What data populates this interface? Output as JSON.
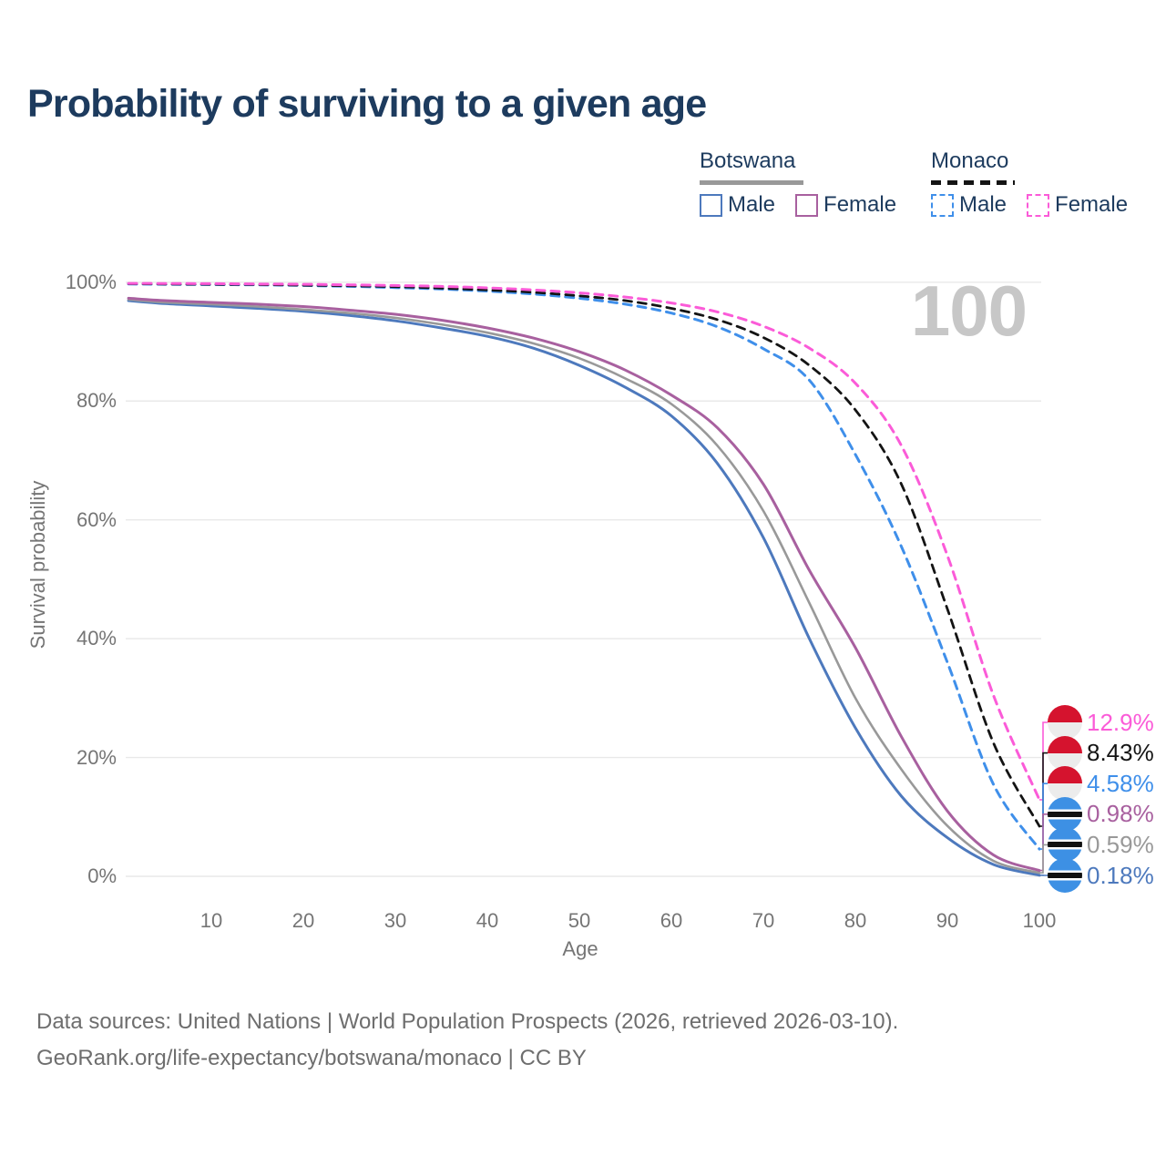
{
  "title": "Probability of surviving to a given age",
  "watermark": "100",
  "legend": {
    "groups": [
      {
        "label": "Botswana",
        "line_style": "solid",
        "underline_color": "#999999",
        "items": [
          {
            "label": "Male",
            "color": "#4d79bd",
            "style": "solid"
          },
          {
            "label": "Female",
            "color": "#a8609f",
            "style": "solid"
          }
        ]
      },
      {
        "label": "Monaco",
        "line_style": "dashed",
        "underline_color": "#141414",
        "items": [
          {
            "label": "Male",
            "color": "#3f8fea",
            "style": "dashed"
          },
          {
            "label": "Female",
            "color": "#fb5bd8",
            "style": "dashed"
          }
        ]
      }
    ]
  },
  "axes": {
    "y_title": "Survival probability",
    "x_title": "Age",
    "y_ticks": [
      {
        "label": "100%",
        "value": 100
      },
      {
        "label": "80%",
        "value": 80
      },
      {
        "label": "60%",
        "value": 60
      },
      {
        "label": "40%",
        "value": 40
      },
      {
        "label": "20%",
        "value": 20
      },
      {
        "label": "0%",
        "value": 0
      }
    ],
    "x_ticks": [
      {
        "label": "10",
        "value": 10
      },
      {
        "label": "20",
        "value": 20
      },
      {
        "label": "30",
        "value": 30
      },
      {
        "label": "40",
        "value": 40
      },
      {
        "label": "50",
        "value": 50
      },
      {
        "label": "60",
        "value": 60
      },
      {
        "label": "70",
        "value": 70
      },
      {
        "label": "80",
        "value": 80
      },
      {
        "label": "90",
        "value": 90
      },
      {
        "label": "100",
        "value": 100
      }
    ]
  },
  "chart_data": {
    "type": "line",
    "title": "Probability of surviving to a given age",
    "xlabel": "Age",
    "ylabel": "Survival probability",
    "x_range": [
      0,
      100
    ],
    "y_range_pct": [
      0,
      100
    ],
    "grid": "horizontal",
    "legend_position": "top-right",
    "x": [
      1,
      5,
      10,
      15,
      20,
      25,
      30,
      35,
      40,
      45,
      50,
      55,
      60,
      65,
      70,
      75,
      80,
      85,
      90,
      95,
      100
    ],
    "series": [
      {
        "name": "Botswana Male",
        "country": "Botswana",
        "sex": "Male",
        "color": "#4d79bd",
        "dash": "solid",
        "width": 3,
        "values": [
          96.9,
          96.4,
          96.0,
          95.6,
          95.1,
          94.4,
          93.5,
          92.3,
          90.9,
          88.9,
          86.0,
          82.3,
          77.5,
          69.5,
          57.0,
          40.0,
          25.0,
          13.5,
          6.5,
          2.0,
          0.18
        ]
      },
      {
        "name": "Botswana",
        "country": "Botswana",
        "sex": "All",
        "color": "#999999",
        "dash": "solid",
        "width": 2.6,
        "values": [
          97.1,
          96.6,
          96.3,
          95.9,
          95.4,
          94.8,
          94.0,
          92.9,
          91.5,
          89.7,
          87.2,
          83.8,
          79.5,
          72.5,
          61.5,
          46.0,
          30.0,
          18.0,
          8.5,
          2.6,
          0.59
        ]
      },
      {
        "name": "Botswana Female",
        "country": "Botswana",
        "sex": "Female",
        "color": "#a8609f",
        "dash": "solid",
        "width": 3,
        "values": [
          97.3,
          96.9,
          96.6,
          96.3,
          95.9,
          95.3,
          94.6,
          93.6,
          92.3,
          90.6,
          88.3,
          85.2,
          81.0,
          75.5,
          66.0,
          51.5,
          38.5,
          23.5,
          11.0,
          3.6,
          0.98
        ]
      },
      {
        "name": "Monaco Male",
        "country": "Monaco",
        "sex": "Male",
        "color": "#3f8fea",
        "dash": "dashed",
        "width": 3,
        "values": [
          99.7,
          99.65,
          99.6,
          99.55,
          99.45,
          99.3,
          99.1,
          98.85,
          98.5,
          98.0,
          97.3,
          96.3,
          94.8,
          92.5,
          88.8,
          83.5,
          71.0,
          55.5,
          36.0,
          15.5,
          4.58
        ]
      },
      {
        "name": "Monaco",
        "country": "Monaco",
        "sex": "All",
        "color": "#141414",
        "dash": "dashed",
        "width": 2.8,
        "values": [
          99.75,
          99.7,
          99.65,
          99.6,
          99.5,
          99.4,
          99.25,
          99.0,
          98.7,
          98.3,
          97.7,
          96.9,
          95.6,
          93.7,
          90.7,
          86.0,
          78.5,
          66.0,
          45.0,
          22.5,
          8.43
        ]
      },
      {
        "name": "Monaco Female",
        "country": "Monaco",
        "sex": "Female",
        "color": "#fb5bd8",
        "dash": "dashed",
        "width": 3,
        "values": [
          99.8,
          99.78,
          99.75,
          99.7,
          99.65,
          99.55,
          99.45,
          99.3,
          99.05,
          98.7,
          98.2,
          97.5,
          96.5,
          95.0,
          92.6,
          88.9,
          83.0,
          72.5,
          54.0,
          30.5,
          12.9
        ]
      }
    ]
  },
  "end_labels": [
    {
      "value": "12.9%",
      "series": "Monaco Female",
      "color": "#fb5bd8",
      "flag": "monaco"
    },
    {
      "value": "8.43%",
      "series": "Monaco",
      "color": "#141414",
      "flag": "monaco"
    },
    {
      "value": "4.58%",
      "series": "Monaco Male",
      "color": "#3f8fea",
      "flag": "monaco"
    },
    {
      "value": "0.98%",
      "series": "Botswana Female",
      "color": "#a8609f",
      "flag": "botswana"
    },
    {
      "value": "0.59%",
      "series": "Botswana",
      "color": "#999999",
      "flag": "botswana"
    },
    {
      "value": "0.18%",
      "series": "Botswana Male",
      "color": "#4d79bd",
      "flag": "botswana"
    }
  ],
  "footer": {
    "line1": "Data sources: United Nations | World Population Prospects (2026, retrieved 2026-03-10).",
    "line2": "GeoRank.org/life-expectancy/botswana/monaco | CC BY"
  }
}
